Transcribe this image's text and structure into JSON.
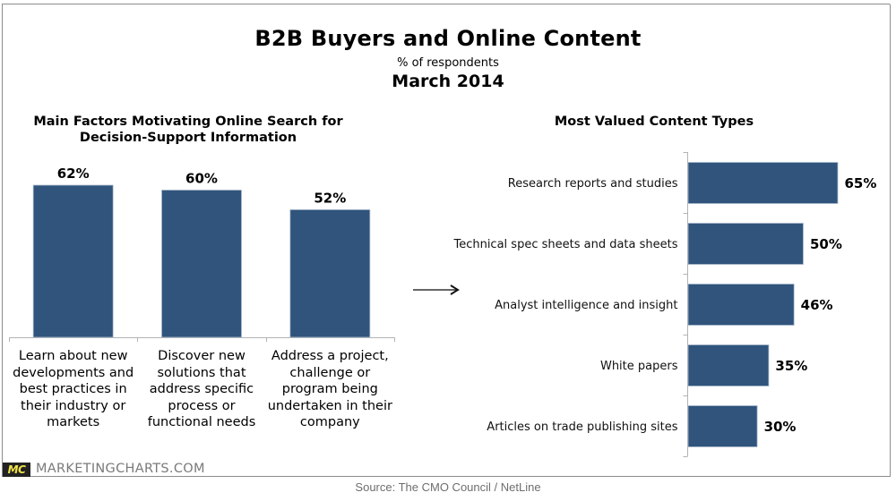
{
  "header": {
    "title": "B2B Buyers and Online Content",
    "subtitle": "% of respondents",
    "date": "March 2014"
  },
  "colors": {
    "bar": "#30547c",
    "bar_edge": "#a9b9cc",
    "axis": "#b3b3b3"
  },
  "chart_data": [
    {
      "type": "bar",
      "orientation": "vertical",
      "title": "Main Factors Motivating Online Search for Decision-Support Information",
      "title_lines": [
        "Main Factors Motivating Online Search for",
        "Decision-Support Information"
      ],
      "categories": [
        "Learn about new developments and best practices in their industry or markets",
        "Discover new solutions that address specific process or functional needs",
        "Address a project, challenge or program being undertaken in their company"
      ],
      "category_lines": [
        [
          "Learn about new",
          "developments and",
          "best practices in",
          "their industry or",
          "markets"
        ],
        [
          "Discover new",
          "solutions that",
          "address specific",
          "process or",
          "functional needs"
        ],
        [
          "Address a project,",
          "challenge or",
          "program being",
          "undertaken in their",
          "company"
        ]
      ],
      "values": [
        62,
        60,
        52
      ],
      "labels": [
        "62%",
        "60%",
        "52%"
      ],
      "unit": "%",
      "xlabel": "",
      "ylabel": "",
      "ylim": [
        0,
        62
      ],
      "grid": false
    },
    {
      "type": "bar",
      "orientation": "horizontal",
      "title": "Most Valued Content Types",
      "categories": [
        "Research reports and studies",
        "Technical spec sheets and data sheets",
        "Analyst intelligence and insight",
        "White papers",
        "Articles on trade publishing sites"
      ],
      "values": [
        65,
        50,
        46,
        35,
        30
      ],
      "labels": [
        "65%",
        "50%",
        "46%",
        "35%",
        "30%"
      ],
      "unit": "%",
      "xlabel": "",
      "ylabel": "",
      "xlim": [
        0,
        65
      ],
      "grid": false
    }
  ],
  "footer": {
    "logo_text": "MC",
    "brand": "MARKETINGCHARTS.COM",
    "source": "Source: The CMO Council / NetLine"
  }
}
